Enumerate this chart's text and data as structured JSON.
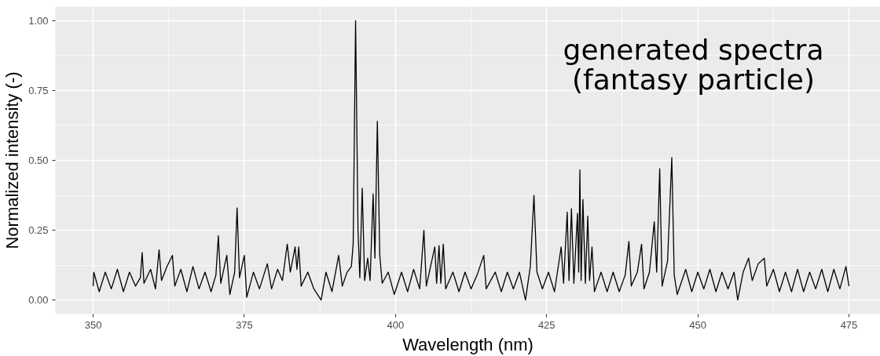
{
  "chart_data": {
    "type": "line",
    "xlabel": "Wavelength (nm)",
    "ylabel": "Normalized intensity (-)",
    "annotations": [
      "generated spectra\n(fantasy particle)"
    ],
    "xlim": [
      343.75,
      480.2
    ],
    "ylim": [
      -0.05,
      1.05
    ],
    "xticks": [
      350,
      375,
      400,
      425,
      450,
      475
    ],
    "yticks": [
      {
        "value": 0,
        "label": "0.00"
      },
      {
        "value": 0.25,
        "label": "0.25"
      },
      {
        "value": 0.5,
        "label": "0.50"
      },
      {
        "value": 0.75,
        "label": "0.75"
      },
      {
        "value": 1,
        "label": "1.00"
      }
    ],
    "grid": true,
    "line_style": "solid",
    "marker": "none",
    "series": [
      {
        "color": "#000000",
        "x": [
          350.0,
          350.1,
          351,
          352,
          353,
          354,
          355,
          356,
          357,
          357.8,
          358.1,
          358.4,
          359.5,
          360.3,
          360.9,
          361.3,
          362.2,
          363.1,
          363.5,
          364.5,
          365.5,
          366.5,
          367.5,
          368.5,
          369.5,
          370.3,
          370.7,
          371.1,
          372.1,
          372.6,
          373.4,
          373.8,
          374.2,
          375.0,
          375.4,
          376.5,
          377.5,
          378.8,
          379.5,
          380.5,
          381.3,
          382.1,
          382.6,
          383.4,
          383.7,
          384.0,
          384.4,
          385.5,
          386.5,
          387.7,
          388.5,
          389.5,
          390.6,
          391.2,
          392.0,
          392.7,
          393.0,
          393.4,
          393.8,
          394.1,
          394.5,
          394.9,
          395.4,
          395.8,
          396.3,
          396.6,
          397.0,
          397.4,
          397.8,
          398.8,
          399.8,
          401,
          402,
          403,
          404,
          404.7,
          405.1,
          406.5,
          406.8,
          407.2,
          407.5,
          407.9,
          408.3,
          409.5,
          410.5,
          411.5,
          412.5,
          413.5,
          414.6,
          415,
          416.5,
          417.5,
          418.5,
          419.5,
          420.5,
          421.5,
          422.3,
          422.9,
          423.4,
          424.3,
          425.3,
          426.3,
          427.4,
          427.8,
          428.4,
          428.7,
          429.1,
          429.5,
          430.1,
          430.3,
          430.5,
          430.7,
          431.0,
          431.4,
          431.8,
          432.1,
          432.5,
          432.9,
          434,
          435,
          436,
          437,
          438,
          438.6,
          439,
          440.0,
          440.7,
          441.1,
          442.0,
          442.8,
          443.2,
          443.7,
          444.1,
          445.0,
          445.7,
          446.1,
          446.6,
          448,
          449,
          450,
          451,
          452,
          453,
          454,
          455,
          456,
          456.6,
          457.5,
          458.4,
          459,
          460,
          461.0,
          461.4,
          462.5,
          463.5,
          464.5,
          465.5,
          466.5,
          467.5,
          468.5,
          469.5,
          470.5,
          471.5,
          472.5,
          473.5,
          474.5,
          475
        ],
        "values": [
          0.05,
          0.1,
          0.03,
          0.1,
          0.04,
          0.11,
          0.03,
          0.1,
          0.05,
          0.08,
          0.17,
          0.06,
          0.11,
          0.04,
          0.18,
          0.07,
          0.12,
          0.16,
          0.05,
          0.11,
          0.03,
          0.12,
          0.04,
          0.1,
          0.03,
          0.09,
          0.23,
          0.06,
          0.16,
          0.02,
          0.1,
          0.33,
          0.08,
          0.16,
          0.01,
          0.1,
          0.04,
          0.13,
          0.04,
          0.11,
          0.07,
          0.2,
          0.1,
          0.19,
          0.11,
          0.19,
          0.05,
          0.1,
          0.04,
          0.0,
          0.1,
          0.03,
          0.16,
          0.05,
          0.1,
          0.12,
          0.2,
          1.0,
          0.25,
          0.08,
          0.4,
          0.07,
          0.15,
          0.07,
          0.38,
          0.15,
          0.64,
          0.16,
          0.06,
          0.1,
          0.02,
          0.1,
          0.03,
          0.11,
          0.04,
          0.25,
          0.05,
          0.19,
          0.06,
          0.195,
          0.06,
          0.2,
          0.04,
          0.1,
          0.03,
          0.1,
          0.04,
          0.09,
          0.16,
          0.04,
          0.1,
          0.03,
          0.1,
          0.04,
          0.1,
          0.0,
          0.12,
          0.375,
          0.1,
          0.04,
          0.1,
          0.03,
          0.19,
          0.06,
          0.315,
          0.07,
          0.327,
          0.06,
          0.31,
          0.1,
          0.466,
          0.07,
          0.36,
          0.06,
          0.3,
          0.07,
          0.19,
          0.03,
          0.1,
          0.03,
          0.1,
          0.03,
          0.09,
          0.21,
          0.05,
          0.1,
          0.2,
          0.04,
          0.1,
          0.28,
          0.1,
          0.47,
          0.05,
          0.14,
          0.51,
          0.09,
          0.02,
          0.11,
          0.03,
          0.1,
          0.04,
          0.11,
          0.03,
          0.1,
          0.04,
          0.1,
          0.0,
          0.1,
          0.15,
          0.07,
          0.13,
          0.15,
          0.05,
          0.11,
          0.03,
          0.1,
          0.03,
          0.11,
          0.03,
          0.1,
          0.04,
          0.11,
          0.03,
          0.11,
          0.04,
          0.12,
          0.05
        ]
      }
    ]
  }
}
